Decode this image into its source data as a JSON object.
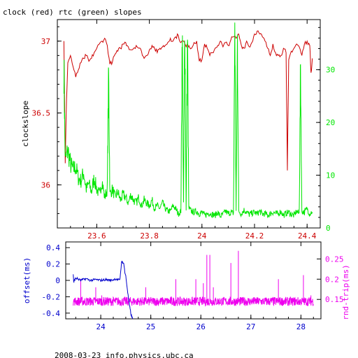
{
  "title": "clock (red) rtc (green) slopes",
  "footer": "2008-03-23 info.physics.ubc.ca",
  "colors": {
    "clock": "#cc0000",
    "rtc": "#00e600",
    "offset": "#0000cc",
    "roundtrip": "#ee00ee",
    "axis": "#000000"
  },
  "chart_data": [
    {
      "type": "line",
      "ylabel": "clockslope",
      "xlim": [
        23.45,
        24.45
      ],
      "ylim_left": [
        35.7,
        37.15
      ],
      "ylim_right": [
        0,
        39.5
      ],
      "x_ticks": [
        "23.6",
        "23.8",
        "24",
        "24.2",
        "24.4"
      ],
      "y_left_ticks": [
        "36",
        "36.5",
        "37"
      ],
      "y_right_ticks": [
        "0",
        "10",
        "20",
        "30"
      ],
      "series": [
        {
          "axis": "left",
          "color": "#cc0000",
          "x": [
            23.475,
            23.48,
            23.485,
            23.49,
            23.5,
            23.51,
            23.52,
            23.53,
            23.54,
            23.55,
            23.56,
            23.57,
            23.58,
            23.59,
            23.6,
            23.61,
            23.62,
            23.63,
            23.64,
            23.65,
            23.66,
            23.67,
            23.68,
            23.69,
            23.7,
            23.71,
            23.72,
            23.73,
            23.74,
            23.75,
            23.76,
            23.77,
            23.78,
            23.79,
            23.8,
            23.81,
            23.82,
            23.83,
            23.84,
            23.85,
            23.86,
            23.87,
            23.88,
            23.89,
            23.9,
            23.91,
            23.92,
            23.93,
            23.94,
            23.95,
            23.96,
            23.97,
            23.98,
            23.99,
            24.0,
            24.01,
            24.02,
            24.03,
            24.04,
            24.05,
            24.06,
            24.07,
            24.08,
            24.09,
            24.1,
            24.11,
            24.12,
            24.13,
            24.14,
            24.15,
            24.16,
            24.17,
            24.18,
            24.19,
            24.2,
            24.21,
            24.22,
            24.23,
            24.24,
            24.25,
            24.26,
            24.27,
            24.28,
            24.29,
            24.3,
            24.31,
            24.32,
            24.325,
            24.33,
            24.34,
            24.35,
            24.36,
            24.37,
            24.38,
            24.39,
            24.4,
            24.41,
            24.415,
            24.42
          ],
          "y": [
            37.0,
            36.15,
            36.6,
            36.85,
            36.9,
            36.82,
            36.75,
            36.8,
            36.85,
            36.88,
            36.9,
            36.86,
            36.88,
            36.92,
            36.95,
            36.98,
            37.0,
            37.02,
            36.97,
            36.84,
            36.86,
            36.91,
            36.93,
            36.95,
            36.98,
            36.99,
            36.96,
            36.94,
            36.95,
            36.97,
            36.95,
            36.93,
            36.88,
            36.9,
            36.94,
            36.97,
            36.95,
            36.92,
            36.95,
            36.96,
            36.97,
            36.99,
            37.02,
            37.0,
            37.03,
            37.04,
            36.99,
            37.0,
            36.96,
            36.97,
            36.95,
            36.99,
            37.0,
            36.86,
            36.87,
            36.98,
            36.95,
            36.9,
            36.92,
            36.95,
            36.97,
            37.0,
            36.96,
            36.99,
            36.97,
            37.01,
            37.03,
            37.02,
            37.05,
            36.97,
            36.95,
            37.0,
            36.96,
            36.99,
            37.05,
            37.07,
            37.05,
            37.03,
            37.0,
            36.95,
            36.9,
            36.98,
            36.92,
            36.9,
            36.9,
            36.95,
            36.92,
            36.1,
            36.87,
            36.93,
            36.95,
            36.98,
            36.96,
            36.9,
            36.98,
            37.0,
            36.97,
            36.78,
            36.88
          ]
        },
        {
          "axis": "right",
          "color": "#00e600",
          "x": [
            23.475,
            23.48,
            23.49,
            23.5,
            23.51,
            23.52,
            23.53,
            23.54,
            23.55,
            23.56,
            23.57,
            23.58,
            23.59,
            23.6,
            23.61,
            23.62,
            23.63,
            23.64,
            23.645,
            23.65,
            23.66,
            23.67,
            23.68,
            23.69,
            23.7,
            23.71,
            23.72,
            23.73,
            23.74,
            23.75,
            23.76,
            23.77,
            23.78,
            23.79,
            23.8,
            23.81,
            23.82,
            23.83,
            23.84,
            23.85,
            23.86,
            23.87,
            23.88,
            23.89,
            23.9,
            23.91,
            23.92,
            23.925,
            23.93,
            23.935,
            23.94,
            23.945,
            23.95,
            23.96,
            23.97,
            23.98,
            23.99,
            24.0,
            24.01,
            24.02,
            24.03,
            24.04,
            24.05,
            24.06,
            24.07,
            24.08,
            24.09,
            24.1,
            24.11,
            24.12,
            24.125,
            24.13,
            24.135,
            24.14,
            24.15,
            24.16,
            24.17,
            24.18,
            24.19,
            24.2,
            24.21,
            24.22,
            24.23,
            24.24,
            24.25,
            24.26,
            24.27,
            24.28,
            24.29,
            24.3,
            24.31,
            24.32,
            24.33,
            24.34,
            24.35,
            24.36,
            24.37,
            24.375,
            24.38,
            24.39,
            24.4,
            24.41,
            24.42
          ],
          "y": [
            29.0,
            12.0,
            14.0,
            11.5,
            10.5,
            11.0,
            9.0,
            8.5,
            10.0,
            7.0,
            8.0,
            6.5,
            9.0,
            7.0,
            6.0,
            8.5,
            5.5,
            7.0,
            28.0,
            6.0,
            7.0,
            5.5,
            6.5,
            5.0,
            6.0,
            5.5,
            4.5,
            6.0,
            5.0,
            4.5,
            5.5,
            4.0,
            5.0,
            4.5,
            4.0,
            5.0,
            3.5,
            4.0,
            3.5,
            4.5,
            3.5,
            3.0,
            3.0,
            4.0,
            3.5,
            2.5,
            3.0,
            36.0,
            4.0,
            37.5,
            3.0,
            35.0,
            3.5,
            3.0,
            2.8,
            3.0,
            2.5,
            2.8,
            2.2,
            2.5,
            2.6,
            2.4,
            2.2,
            2.8,
            2.0,
            2.4,
            3.0,
            2.5,
            2.8,
            2.6,
            37.0,
            3.0,
            34.0,
            3.0,
            2.5,
            3.2,
            2.8,
            2.4,
            2.6,
            2.8,
            2.5,
            3.0,
            2.4,
            2.6,
            2.2,
            2.5,
            2.8,
            2.6,
            2.4,
            3.0,
            2.2,
            2.6,
            2.8,
            2.4,
            2.2,
            3.0,
            2.5,
            29.0,
            3.0,
            2.8,
            3.5,
            2.5,
            3.0
          ]
        }
      ]
    },
    {
      "type": "line",
      "ylabel_left": "offset(ms)",
      "ylabel_right": "rnd-trip(ms)",
      "xlim": [
        23.3,
        28.4
      ],
      "ylim_left": [
        -0.47,
        0.47
      ],
      "ylim_right": [
        0.102,
        0.292
      ],
      "x_ticks": [
        "24",
        "25",
        "26",
        "27",
        "28"
      ],
      "y_left_ticks": [
        "0.4",
        "0.2",
        "0",
        "-0.2",
        "-0.4"
      ],
      "y_right_ticks": [
        "0.25",
        "0.2",
        "0.15"
      ],
      "series": [
        {
          "axis": "left",
          "color": "#0000cc",
          "x": [
            23.45,
            23.46,
            23.5,
            23.6,
            23.7,
            23.8,
            23.9,
            24.0,
            24.1,
            24.2,
            24.3,
            24.38,
            24.4,
            24.42,
            24.44,
            24.46,
            24.48,
            24.5,
            24.52,
            24.54,
            24.56,
            24.58,
            24.6,
            24.62,
            24.64
          ],
          "y": [
            0.08,
            -0.02,
            0.03,
            0.0,
            0.02,
            0.0,
            0.01,
            0.0,
            0.01,
            0.0,
            0.02,
            0.0,
            0.12,
            0.25,
            0.2,
            0.22,
            0.1,
            0.05,
            -0.05,
            -0.15,
            -0.25,
            -0.33,
            -0.4,
            -0.45,
            -0.47
          ]
        },
        {
          "axis": "right",
          "color": "#ee00ee",
          "baseline": 0.145,
          "x": [
            23.6,
            23.9,
            24.02,
            24.9,
            25.5,
            25.9,
            26.05,
            26.12,
            26.18,
            26.25,
            26.6,
            26.75,
            27.55,
            28.05,
            28.2
          ],
          "y": [
            0.2,
            0.18,
            0.16,
            0.18,
            0.2,
            0.2,
            0.19,
            0.26,
            0.26,
            0.18,
            0.24,
            0.27,
            0.2,
            0.21,
            0.16
          ]
        }
      ]
    }
  ]
}
